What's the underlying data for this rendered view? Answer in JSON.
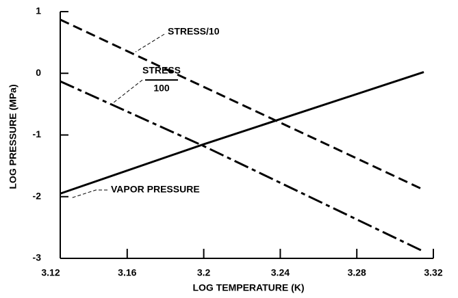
{
  "chart_data": {
    "type": "line",
    "xlabel": "LOG TEMPERATURE (K)",
    "ylabel": "LOG PRESSURE (MPa)",
    "xlim": [
      3.12,
      3.32
    ],
    "xticks": [
      3.12,
      3.16,
      3.2,
      3.24,
      3.28,
      3.32
    ],
    "ylim": [
      -3,
      1
    ],
    "yticks": [
      -3,
      -2,
      -1,
      0,
      1
    ],
    "series": [
      {
        "name": "STRESS/10",
        "color": "#000000",
        "style": "dashed",
        "x": [
          3.125,
          3.16,
          3.2,
          3.24,
          3.28,
          3.315
        ],
        "values": [
          0.87,
          0.36,
          -0.22,
          -0.8,
          -1.38,
          -1.89
        ]
      },
      {
        "name_numerator": "STRESS",
        "name_denominator": "100",
        "color": "#000000",
        "style": "dashdot",
        "x": [
          3.125,
          3.2,
          3.315
        ],
        "values": [
          -0.13,
          -1.18,
          -2.89
        ]
      },
      {
        "name": "VAPOR PRESSURE",
        "color": "#000000",
        "style": "solid",
        "x": [
          3.125,
          3.2,
          3.315
        ],
        "values": [
          -1.95,
          -1.15,
          0.02
        ]
      }
    ]
  }
}
